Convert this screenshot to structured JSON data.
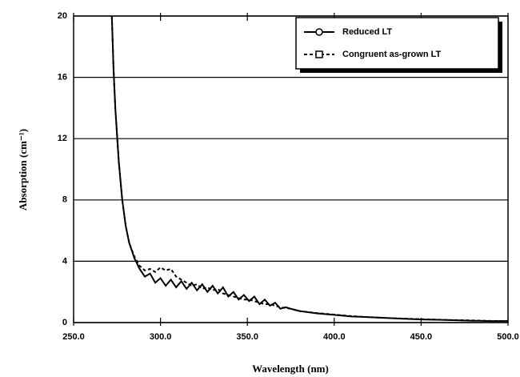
{
  "chart_data": {
    "type": "line",
    "xlabel": "Wavelength (nm)",
    "ylabel": "Absorption (cm⁻¹)",
    "x": [
      272,
      273,
      274,
      276,
      278,
      280,
      282,
      285,
      288,
      291,
      294,
      297,
      300,
      303,
      306,
      309,
      312,
      315,
      318,
      321,
      324,
      327,
      330,
      333,
      336,
      339,
      342,
      345,
      348,
      351,
      354,
      357,
      360,
      363,
      366,
      369,
      372,
      375,
      380,
      390,
      400,
      410,
      420,
      430,
      440,
      450,
      460,
      470,
      480,
      483,
      490,
      500
    ],
    "series": [
      {
        "name": "Reduced LT",
        "color": "#000000",
        "linestyle": "solid",
        "values": [
          20,
          16.5,
          14,
          10.5,
          8,
          6.3,
          5.2,
          4.2,
          3.5,
          3.0,
          3.2,
          2.6,
          2.9,
          2.4,
          2.8,
          2.3,
          2.7,
          2.2,
          2.6,
          2.1,
          2.5,
          2.0,
          2.4,
          1.9,
          2.3,
          1.7,
          2.0,
          1.5,
          1.8,
          1.4,
          1.7,
          1.2,
          1.5,
          1.1,
          1.3,
          0.9,
          1.0,
          0.9,
          0.75,
          0.6,
          0.5,
          0.4,
          0.35,
          0.3,
          0.25,
          0.2,
          0.18,
          0.15,
          0.12,
          0.12,
          0.1,
          0.1
        ]
      },
      {
        "name": "Congruent as-grown LT",
        "color": "#000000",
        "linestyle": "dashed",
        "values": [
          20,
          16.5,
          14,
          10.5,
          8,
          6.3,
          5.2,
          4.3,
          3.7,
          3.4,
          3.5,
          3.3,
          3.6,
          3.4,
          3.5,
          3.0,
          2.8,
          2.6,
          2.4,
          2.5,
          2.2,
          2.3,
          2.1,
          2.2,
          1.9,
          1.8,
          1.7,
          1.6,
          1.5,
          1.5,
          1.4,
          1.3,
          1.2,
          1.2,
          1.1,
          1.0,
          0.95,
          0.9,
          0.75,
          0.62,
          0.52,
          0.42,
          0.36,
          0.3,
          0.26,
          0.22,
          0.19,
          0.16,
          0.14,
          0.13,
          0.11,
          0.1
        ]
      }
    ],
    "xlim": [
      250,
      500
    ],
    "xticks": [
      {
        "value": 250,
        "label": "250.0"
      },
      {
        "value": 300,
        "label": "300.0"
      },
      {
        "value": 350,
        "label": "350.0"
      },
      {
        "value": 400,
        "label": "400.0"
      },
      {
        "value": 450,
        "label": "450.0"
      },
      {
        "value": 500,
        "label": "500.0"
      }
    ],
    "ylim": [
      0,
      20
    ],
    "yticks": [
      0,
      4,
      8,
      12,
      16,
      20
    ],
    "grid": true,
    "legend": "upper right"
  }
}
